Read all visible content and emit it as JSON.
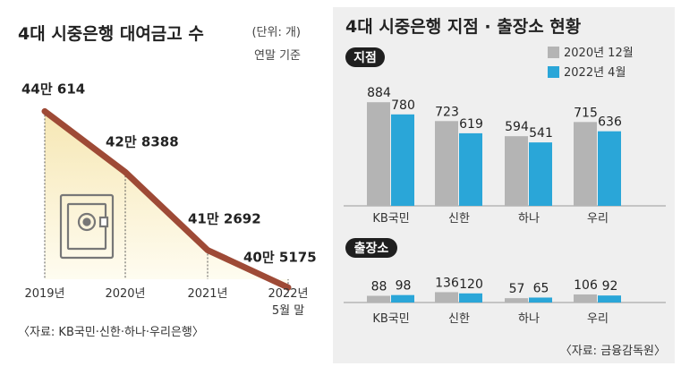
{
  "chart_data": [
    {
      "type": "line",
      "title": "4대 시중은행 대여금고 수",
      "unit_note": "(단위: 개)",
      "basis_note": "연말 기준",
      "x": [
        "2019년",
        "2020년",
        "2021년",
        "2022년 5월 말"
      ],
      "x_lines": [
        [
          "2019년"
        ],
        [
          "2020년"
        ],
        [
          "2021년"
        ],
        [
          "2022년",
          "5월 말"
        ]
      ],
      "values": [
        440614,
        428388,
        412692,
        405175
      ],
      "value_labels": [
        "44만 614",
        "42만 8388",
        "41만 2692",
        "40만 5175"
      ],
      "source": "〈자료: KB국민·신한·하나·우리은행〉",
      "colors": {
        "line": "#9e4a36",
        "fill_top": "#f6e7b4",
        "fill_bottom": "#fffdf3"
      }
    },
    {
      "type": "bar",
      "title": "4대 시중은행 지점 · 출장소 현황",
      "legend": [
        "2020년 12월",
        "2022년 4월"
      ],
      "categories": [
        "KB국민",
        "신한",
        "하나",
        "우리"
      ],
      "panels": [
        {
          "name": "지점",
          "series": [
            {
              "values": [
                884,
                723,
                594,
                715
              ]
            },
            {
              "values": [
                780,
                619,
                541,
                636
              ]
            }
          ]
        },
        {
          "name": "출장소",
          "series": [
            {
              "values": [
                88,
                136,
                57,
                106
              ]
            },
            {
              "values": [
                98,
                120,
                65,
                92
              ]
            }
          ]
        }
      ],
      "source": "〈자료: 금융감독원〉",
      "colors": {
        "series_2020": "#b4b4b4",
        "series_2022": "#2aa6d8",
        "panel_label_bg": "#1f1f1f"
      }
    }
  ]
}
